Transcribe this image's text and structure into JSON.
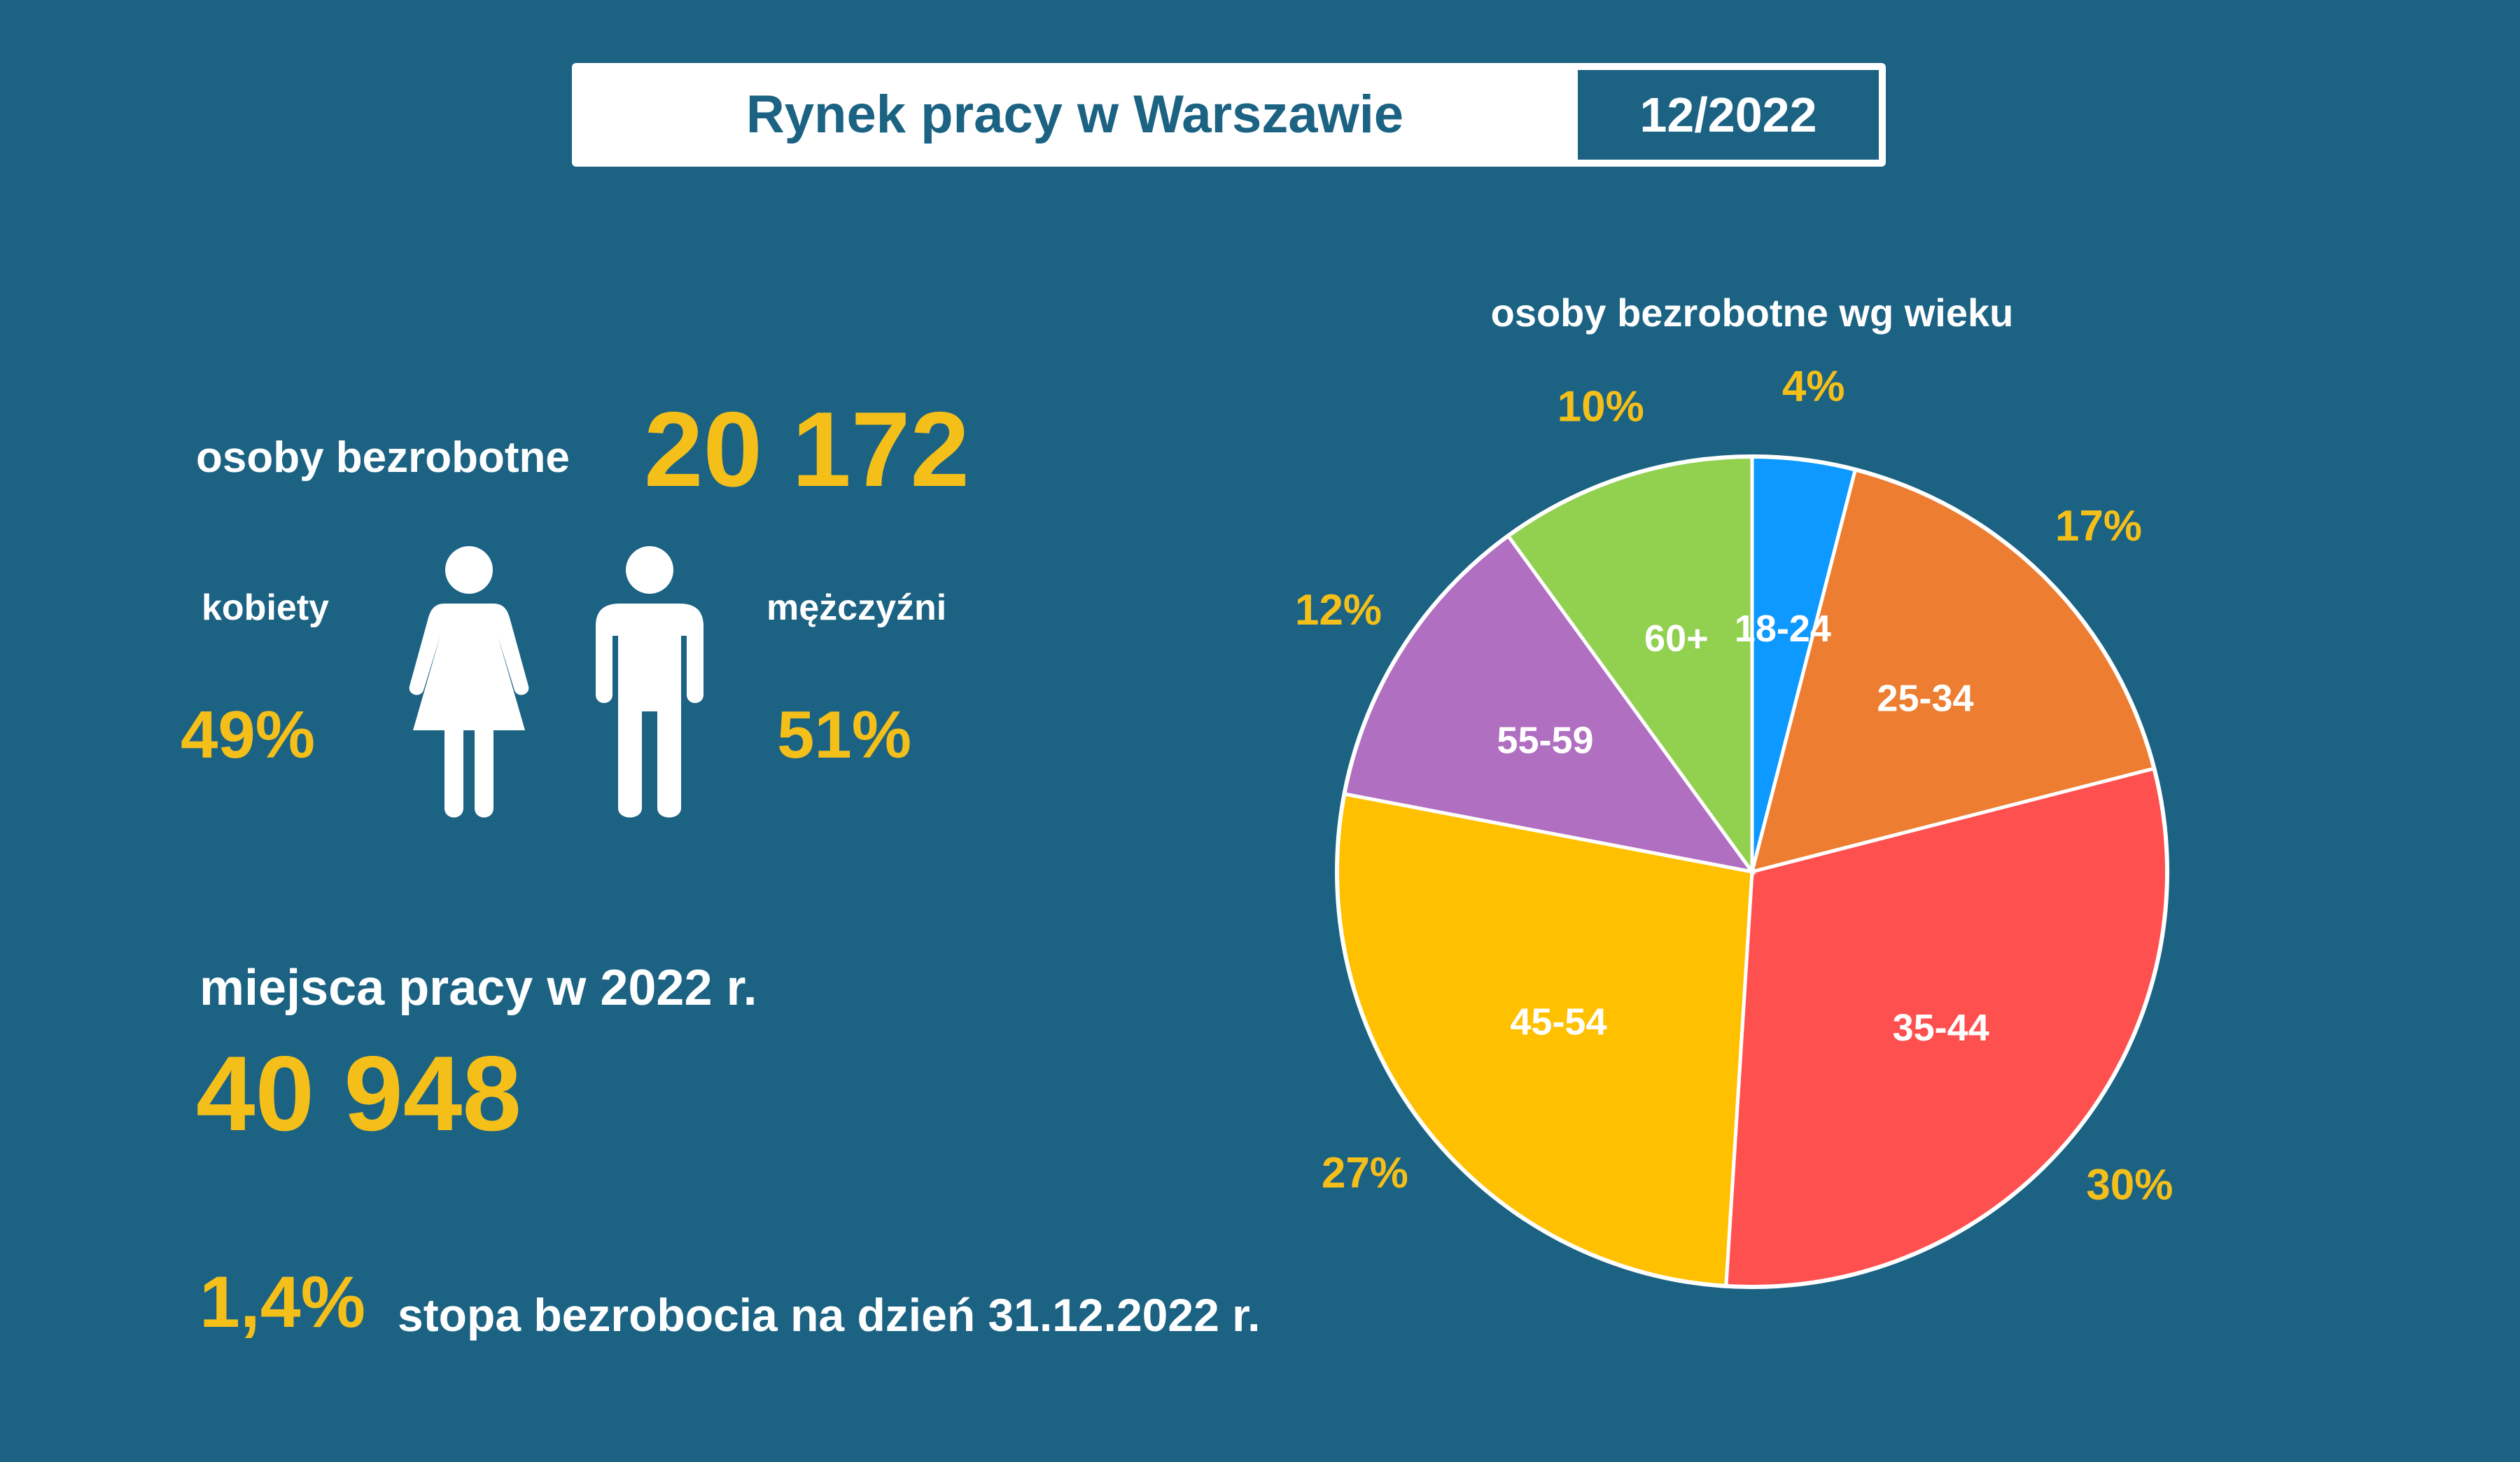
{
  "header": {
    "title": "Rynek pracy w Warszawie",
    "date": "12/2022"
  },
  "unemployed": {
    "label": "osoby bezrobotne",
    "value": "20 172"
  },
  "gender": {
    "women": {
      "label": "kobiety",
      "percent": "49%",
      "icon": "woman-icon"
    },
    "men": {
      "label": "mężczyźni",
      "percent": "51%",
      "icon": "man-icon"
    }
  },
  "jobs": {
    "label": "miejsca pracy w 2022 r.",
    "value": "40 948"
  },
  "rate": {
    "value": "1,4%",
    "label": "stopa bezrobocia na dzień 31.12.2022 r."
  },
  "colors": {
    "background": "#1b6283",
    "accent": "#f5bf1a",
    "text": "#ffffff"
  },
  "chart_data": {
    "type": "pie",
    "title": "osoby bezrobotne wg wieku",
    "categories": [
      "18-24",
      "25-34",
      "35-44",
      "45-54",
      "55-59",
      "60+"
    ],
    "values": [
      4,
      17,
      30,
      27,
      12,
      10
    ],
    "value_labels": [
      "4%",
      "17%",
      "30%",
      "27%",
      "12%",
      "10%"
    ],
    "colors": [
      "#0d99ff",
      "#ed7d31",
      "#ff5050",
      "#ffc000",
      "#b06fc0",
      "#92d050"
    ],
    "start_angle_deg": 0,
    "direction": "clockwise"
  }
}
